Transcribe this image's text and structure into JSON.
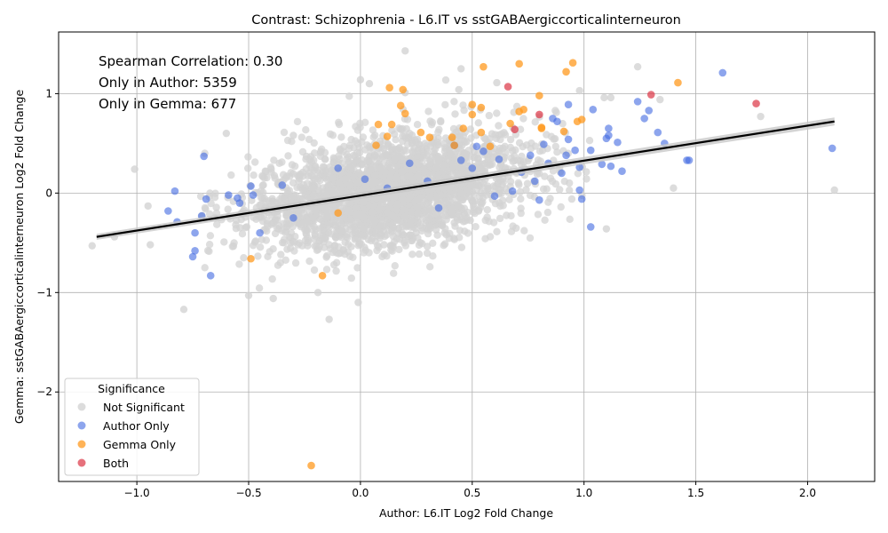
{
  "chart_data": {
    "type": "scatter",
    "title": "Contrast: Schizophrenia - L6.IT vs sstGABAergiccorticalinterneuron",
    "xlabel": "Author: L6.IT Log2 Fold Change",
    "ylabel": "Gemma: sstGABAergiccorticalinterneuron Log2 Fold Change",
    "xlim": [
      -1.35,
      2.3
    ],
    "ylim": [
      -2.9,
      1.62
    ],
    "x_ticks": [
      -1.0,
      -0.5,
      0.0,
      0.5,
      1.0,
      1.5,
      2.0
    ],
    "x_tick_labels": [
      "−1.0",
      "−0.5",
      "0.0",
      "0.5",
      "1.0",
      "1.5",
      "2.0"
    ],
    "y_ticks": [
      -2,
      -1,
      0,
      1
    ],
    "y_tick_labels": [
      "−2",
      "−1",
      "0",
      "1"
    ],
    "grid": true,
    "annotations": [
      "Spearman Correlation: 0.30",
      "Only in Author: 5359",
      "Only in Gemma: 677"
    ],
    "legend": {
      "title": "Significance",
      "placement": "lower-left",
      "entries": [
        "Not Significant",
        "Author Only",
        "Gemma Only",
        "Both"
      ]
    },
    "colors": {
      "Not Significant": "#d3d3d3",
      "Author Only": "#4169e1",
      "Gemma Only": "#ff9a1f",
      "Both": "#dc3545",
      "regression_line": "#000000",
      "confidence_band": "#c8c8c8"
    },
    "regression": {
      "x": [
        -1.18,
        2.12
      ],
      "y": [
        -0.44,
        0.72
      ],
      "band_halfwidth": [
        0.03,
        0.04
      ]
    },
    "series": [
      {
        "name": "Author Only",
        "points": [
          [
            -0.83,
            0.02
          ],
          [
            -0.86,
            -0.18
          ],
          [
            -0.82,
            -0.29
          ],
          [
            -0.74,
            -0.4
          ],
          [
            -0.75,
            -0.64
          ],
          [
            -0.74,
            -0.58
          ],
          [
            -0.7,
            0.37
          ],
          [
            -0.69,
            -0.06
          ],
          [
            -0.71,
            -0.23
          ],
          [
            -0.67,
            -0.83
          ],
          [
            -0.59,
            -0.02
          ],
          [
            -0.55,
            -0.05
          ],
          [
            -0.54,
            -0.1
          ],
          [
            -0.49,
            0.07
          ],
          [
            -0.48,
            -0.02
          ],
          [
            -0.45,
            -0.4
          ],
          [
            -0.35,
            0.08
          ],
          [
            -0.3,
            -0.25
          ],
          [
            -0.1,
            0.25
          ],
          [
            0.02,
            0.14
          ],
          [
            0.12,
            0.05
          ],
          [
            0.22,
            0.3
          ],
          [
            0.3,
            0.12
          ],
          [
            0.35,
            -0.15
          ],
          [
            0.42,
            0.48
          ],
          [
            0.45,
            0.33
          ],
          [
            0.5,
            0.25
          ],
          [
            0.52,
            0.47
          ],
          [
            0.55,
            0.42
          ],
          [
            0.6,
            -0.03
          ],
          [
            0.62,
            0.34
          ],
          [
            0.68,
            0.02
          ],
          [
            0.72,
            0.21
          ],
          [
            0.76,
            0.38
          ],
          [
            0.78,
            0.12
          ],
          [
            0.8,
            -0.07
          ],
          [
            0.82,
            0.49
          ],
          [
            0.84,
            0.3
          ],
          [
            0.86,
            0.75
          ],
          [
            0.88,
            0.72
          ],
          [
            0.9,
            0.2
          ],
          [
            0.92,
            0.38
          ],
          [
            0.93,
            0.54
          ],
          [
            0.93,
            0.89
          ],
          [
            0.96,
            0.43
          ],
          [
            0.98,
            0.26
          ],
          [
            0.98,
            0.03
          ],
          [
            0.99,
            -0.06
          ],
          [
            1.03,
            -0.34
          ],
          [
            1.03,
            0.43
          ],
          [
            1.04,
            0.84
          ],
          [
            1.08,
            0.29
          ],
          [
            1.1,
            0.55
          ],
          [
            1.11,
            0.58
          ],
          [
            1.11,
            0.65
          ],
          [
            1.12,
            0.27
          ],
          [
            1.15,
            0.51
          ],
          [
            1.17,
            0.22
          ],
          [
            1.24,
            0.92
          ],
          [
            1.27,
            0.75
          ],
          [
            1.29,
            0.83
          ],
          [
            1.33,
            0.61
          ],
          [
            1.36,
            0.5
          ],
          [
            1.46,
            0.33
          ],
          [
            1.47,
            0.33
          ],
          [
            1.62,
            1.21
          ],
          [
            2.11,
            0.45
          ]
        ]
      },
      {
        "name": "Gemma Only",
        "points": [
          [
            -0.49,
            -0.66
          ],
          [
            -0.22,
            -2.74
          ],
          [
            -0.17,
            -0.83
          ],
          [
            -0.1,
            -0.2
          ],
          [
            0.07,
            0.48
          ],
          [
            0.08,
            0.69
          ],
          [
            0.12,
            0.57
          ],
          [
            0.13,
            1.06
          ],
          [
            0.14,
            0.69
          ],
          [
            0.18,
            0.88
          ],
          [
            0.19,
            1.04
          ],
          [
            0.2,
            0.8
          ],
          [
            0.27,
            0.61
          ],
          [
            0.31,
            0.56
          ],
          [
            0.41,
            0.56
          ],
          [
            0.42,
            0.48
          ],
          [
            0.46,
            0.65
          ],
          [
            0.5,
            0.89
          ],
          [
            0.5,
            0.79
          ],
          [
            0.54,
            0.86
          ],
          [
            0.54,
            0.61
          ],
          [
            0.55,
            1.27
          ],
          [
            0.58,
            0.47
          ],
          [
            0.67,
            0.7
          ],
          [
            0.71,
            0.82
          ],
          [
            0.71,
            1.3
          ],
          [
            0.73,
            0.84
          ],
          [
            0.8,
            0.98
          ],
          [
            0.81,
            0.66
          ],
          [
            0.81,
            0.65
          ],
          [
            0.91,
            0.62
          ],
          [
            0.92,
            1.22
          ],
          [
            0.95,
            1.31
          ],
          [
            0.97,
            0.72
          ],
          [
            0.99,
            0.74
          ],
          [
            1.42,
            1.11
          ]
        ]
      },
      {
        "name": "Both",
        "points": [
          [
            0.66,
            1.07
          ],
          [
            0.69,
            0.64
          ],
          [
            0.8,
            0.79
          ],
          [
            1.3,
            0.99
          ],
          [
            1.77,
            0.9
          ]
        ]
      },
      {
        "name": "Not Significant",
        "count": 2600,
        "regression_slope": 0.35,
        "notable_points": [
          [
            -1.2,
            -0.53
          ],
          [
            -1.1,
            -0.44
          ],
          [
            -1.01,
            0.24
          ],
          [
            -0.95,
            -0.13
          ],
          [
            -0.94,
            -0.52
          ],
          [
            -0.79,
            -1.17
          ],
          [
            -0.6,
            0.6
          ],
          [
            -0.5,
            -1.03
          ],
          [
            -0.39,
            -1.06
          ],
          [
            -0.3,
            0.58
          ],
          [
            -0.19,
            -1.0
          ],
          [
            -0.14,
            -1.27
          ],
          [
            -0.01,
            -1.1
          ],
          [
            0.0,
            1.14
          ],
          [
            0.04,
            1.1
          ],
          [
            0.2,
            1.01
          ],
          [
            0.2,
            1.43
          ],
          [
            0.44,
            1.04
          ],
          [
            0.45,
            1.25
          ],
          [
            0.61,
            1.11
          ],
          [
            0.98,
            1.03
          ],
          [
            1.09,
            0.96
          ],
          [
            1.1,
            -0.36
          ],
          [
            1.12,
            0.96
          ],
          [
            1.24,
            1.27
          ],
          [
            1.34,
            0.94
          ],
          [
            1.4,
            0.05
          ],
          [
            1.79,
            0.77
          ],
          [
            2.12,
            0.03
          ]
        ]
      }
    ]
  }
}
